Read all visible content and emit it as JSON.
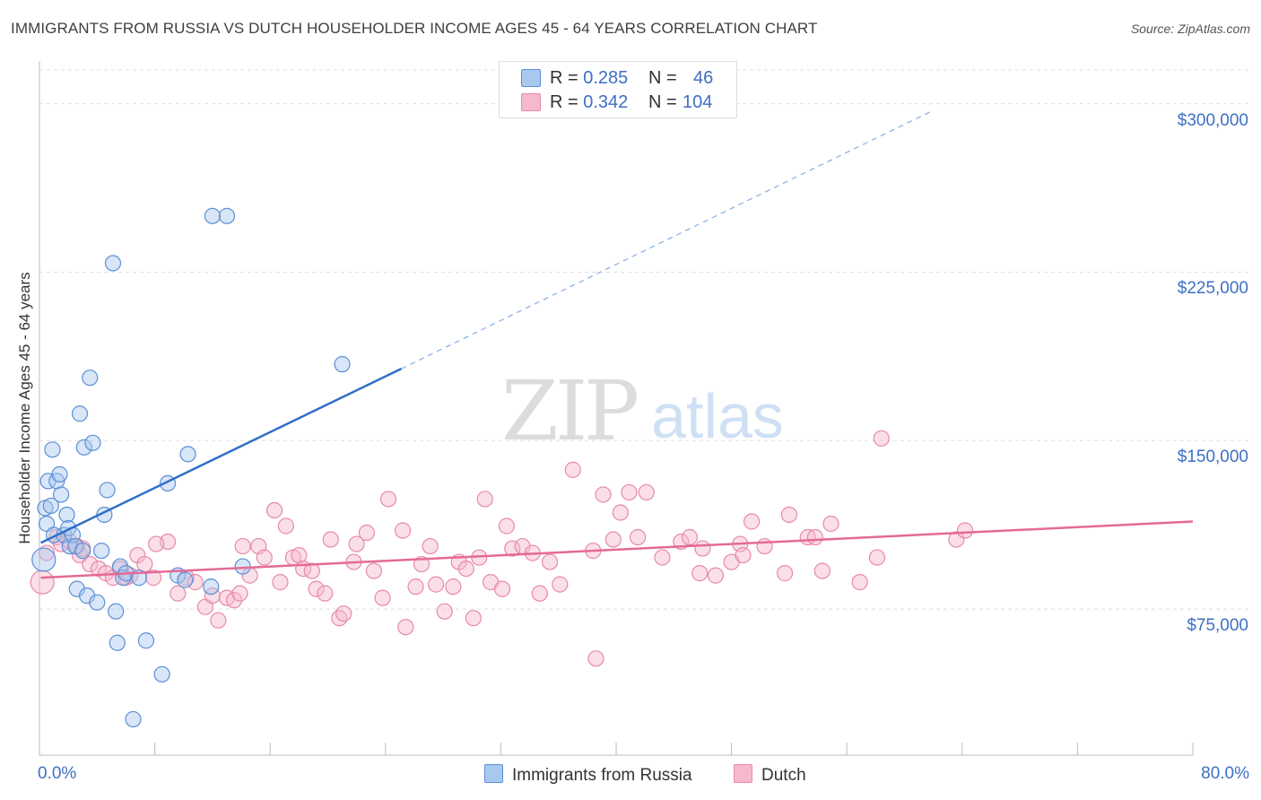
{
  "title": "IMMIGRANTS FROM RUSSIA VS DUTCH HOUSEHOLDER INCOME AGES 45 - 64 YEARS CORRELATION CHART",
  "source": "Source: ZipAtlas.com",
  "watermark": {
    "zip": "ZIP",
    "atlas": "atlas"
  },
  "legend": {
    "rows": [
      {
        "r_label": "R = ",
        "r_value": "0.285",
        "n_label": "N = ",
        "n_value": "46"
      },
      {
        "r_label": "R = ",
        "r_value": "0.342",
        "n_label": "N = ",
        "n_value": "104"
      }
    ]
  },
  "colors": {
    "russia_fill": "#a9c8ef",
    "russia_stroke": "#5b8fd6",
    "russia_line": "#2f6fc8",
    "dutch_fill": "#f6b9cc",
    "dutch_stroke": "#e889a8",
    "dutch_line": "#e46a96",
    "axis_text": "#3d6fc4",
    "grid": "#dedede"
  },
  "chart_data": {
    "type": "scatter",
    "title": "IMMIGRANTS FROM RUSSIA VS DUTCH HOUSEHOLDER INCOME AGES 45 - 64 YEARS CORRELATION CHART",
    "xlabel": "",
    "ylabel": "Householder Income Ages 45 - 64 years",
    "xlim": [
      0,
      80
    ],
    "ylim": [
      10000,
      315000
    ],
    "x_tick_labels": [
      "0.0%",
      "80.0%"
    ],
    "y_ticks": [
      75000,
      150000,
      225000,
      300000
    ],
    "y_tick_labels": [
      "$75,000",
      "$150,000",
      "$225,000",
      "$300,000"
    ],
    "grid": true,
    "legend_placement": "top-center",
    "series": [
      {
        "name": "Immigrants from Russia",
        "r": 0.285,
        "n": 46,
        "trend": {
          "x0": 0.1,
          "y0": 104500,
          "x1": 25.1,
          "y1": 182000,
          "dashed_to_x": 62,
          "dashed_to_y": 297000
        },
        "points": [
          [
            0.3,
            97000
          ],
          [
            0.4,
            120000
          ],
          [
            0.5,
            113000
          ],
          [
            0.6,
            132000
          ],
          [
            0.8,
            121000
          ],
          [
            0.9,
            146000
          ],
          [
            1.0,
            108000
          ],
          [
            1.2,
            132000
          ],
          [
            1.4,
            135000
          ],
          [
            1.5,
            126000
          ],
          [
            1.7,
            108000
          ],
          [
            1.9,
            117000
          ],
          [
            2.0,
            111000
          ],
          [
            2.1,
            103000
          ],
          [
            2.3,
            108000
          ],
          [
            2.5,
            103000
          ],
          [
            2.6,
            84000
          ],
          [
            2.8,
            162000
          ],
          [
            3.0,
            101000
          ],
          [
            3.1,
            147000
          ],
          [
            3.3,
            81000
          ],
          [
            3.5,
            178000
          ],
          [
            3.7,
            149000
          ],
          [
            4.0,
            78000
          ],
          [
            4.3,
            101000
          ],
          [
            4.5,
            117000
          ],
          [
            4.7,
            128000
          ],
          [
            5.1,
            229000
          ],
          [
            5.3,
            74000
          ],
          [
            5.4,
            60000
          ],
          [
            5.6,
            94000
          ],
          [
            5.8,
            89000
          ],
          [
            6.0,
            91000
          ],
          [
            6.5,
            26000
          ],
          [
            6.9,
            89000
          ],
          [
            7.4,
            61000
          ],
          [
            8.5,
            46000
          ],
          [
            8.9,
            131000
          ],
          [
            9.6,
            90000
          ],
          [
            10.1,
            88000
          ],
          [
            10.3,
            144000
          ],
          [
            11.9,
            85000
          ],
          [
            12.0,
            250000
          ],
          [
            13.0,
            250000
          ],
          [
            14.1,
            94000
          ],
          [
            21.0,
            184000
          ]
        ]
      },
      {
        "name": "Dutch",
        "r": 0.342,
        "n": 104,
        "trend": {
          "x0": 0.1,
          "y0": 89000,
          "x1": 80.0,
          "y1": 114000
        },
        "points": [
          [
            0.2,
            87000
          ],
          [
            0.5,
            100000
          ],
          [
            1.2,
            107000
          ],
          [
            1.5,
            104000
          ],
          [
            2.1,
            105000
          ],
          [
            2.6,
            103000
          ],
          [
            2.8,
            99000
          ],
          [
            3.0,
            102000
          ],
          [
            3.5,
            95000
          ],
          [
            4.1,
            93000
          ],
          [
            4.6,
            91000
          ],
          [
            5.1,
            89000
          ],
          [
            5.6,
            93000
          ],
          [
            6.0,
            89000
          ],
          [
            6.3,
            90000
          ],
          [
            6.8,
            99000
          ],
          [
            7.3,
            95000
          ],
          [
            7.9,
            89000
          ],
          [
            8.9,
            105000
          ],
          [
            9.6,
            82000
          ],
          [
            10.2,
            89000
          ],
          [
            10.8,
            87000
          ],
          [
            11.5,
            76000
          ],
          [
            12.0,
            81000
          ],
          [
            12.4,
            70000
          ],
          [
            13.0,
            80000
          ],
          [
            13.5,
            79000
          ],
          [
            13.9,
            82000
          ],
          [
            14.1,
            103000
          ],
          [
            14.6,
            90000
          ],
          [
            15.2,
            103000
          ],
          [
            15.6,
            98000
          ],
          [
            16.3,
            119000
          ],
          [
            16.7,
            87000
          ],
          [
            17.1,
            112000
          ],
          [
            17.6,
            98000
          ],
          [
            18.0,
            99000
          ],
          [
            18.3,
            93000
          ],
          [
            18.9,
            92000
          ],
          [
            19.2,
            84000
          ],
          [
            19.8,
            82000
          ],
          [
            20.2,
            106000
          ],
          [
            20.8,
            71000
          ],
          [
            21.1,
            73000
          ],
          [
            21.8,
            96000
          ],
          [
            22.0,
            104000
          ],
          [
            22.7,
            109000
          ],
          [
            23.2,
            92000
          ],
          [
            23.8,
            80000
          ],
          [
            24.2,
            124000
          ],
          [
            25.2,
            110000
          ],
          [
            25.4,
            67000
          ],
          [
            26.1,
            85000
          ],
          [
            26.5,
            95000
          ],
          [
            27.1,
            103000
          ],
          [
            27.5,
            86000
          ],
          [
            28.1,
            74000
          ],
          [
            28.7,
            85000
          ],
          [
            29.1,
            96000
          ],
          [
            29.6,
            93000
          ],
          [
            30.1,
            71000
          ],
          [
            30.5,
            98000
          ],
          [
            30.9,
            124000
          ],
          [
            31.3,
            87000
          ],
          [
            32.1,
            84000
          ],
          [
            32.4,
            112000
          ],
          [
            32.8,
            102000
          ],
          [
            33.5,
            103000
          ],
          [
            34.2,
            100000
          ],
          [
            34.7,
            82000
          ],
          [
            35.4,
            96000
          ],
          [
            36.1,
            86000
          ],
          [
            37.0,
            137000
          ],
          [
            38.4,
            101000
          ],
          [
            39.1,
            126000
          ],
          [
            39.8,
            106000
          ],
          [
            40.3,
            118000
          ],
          [
            40.9,
            127000
          ],
          [
            41.5,
            107000
          ],
          [
            42.1,
            127000
          ],
          [
            43.2,
            98000
          ],
          [
            44.5,
            105000
          ],
          [
            45.1,
            107000
          ],
          [
            45.8,
            91000
          ],
          [
            46.0,
            102000
          ],
          [
            46.9,
            90000
          ],
          [
            48.0,
            96000
          ],
          [
            48.6,
            104000
          ],
          [
            48.8,
            99000
          ],
          [
            49.4,
            114000
          ],
          [
            50.3,
            103000
          ],
          [
            51.7,
            91000
          ],
          [
            52.0,
            117000
          ],
          [
            53.3,
            107000
          ],
          [
            53.8,
            107000
          ],
          [
            54.3,
            92000
          ],
          [
            54.9,
            113000
          ],
          [
            56.9,
            87000
          ],
          [
            58.4,
            151000
          ],
          [
            58.1,
            98000
          ],
          [
            63.6,
            106000
          ],
          [
            64.2,
            110000
          ],
          [
            38.6,
            53000
          ],
          [
            8.1,
            104000
          ]
        ]
      }
    ]
  },
  "bottom_legend": [
    "Immigrants from Russia",
    "Dutch"
  ]
}
